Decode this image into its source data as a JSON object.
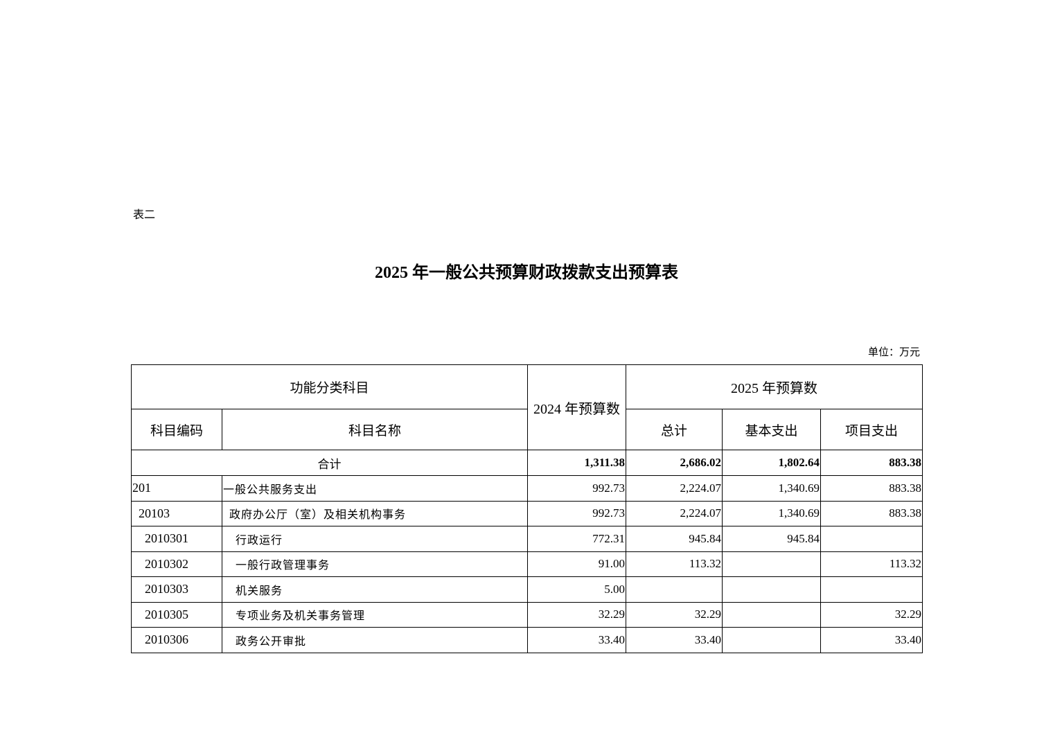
{
  "doc": {
    "label": "表二",
    "title": "2025 年一般公共预算财政拨款支出预算表",
    "unit": "单位：万元"
  },
  "header": {
    "group1": "功能分类科目",
    "prev_year": "2024 年预算数",
    "group2": "2025 年预算数",
    "code": "科目编码",
    "name": "科目名称",
    "total": "总计",
    "basic": "基本支出",
    "project": "项目支出"
  },
  "total_row": {
    "label": "合计",
    "prev": "1,311.38",
    "total": "2,686.02",
    "basic": "1,802.64",
    "project": "883.38"
  },
  "rows": [
    {
      "code": "201",
      "name": "一般公共服务支出",
      "prev": "992.73",
      "total": "2,224.07",
      "basic": "1,340.69",
      "project": "883.38",
      "level": 0
    },
    {
      "code": "20103",
      "name": "政府办公厅（室）及相关机构事务",
      "prev": "992.73",
      "total": "2,224.07",
      "basic": "1,340.69",
      "project": "883.38",
      "level": 1
    },
    {
      "code": "2010301",
      "name": "行政运行",
      "prev": "772.31",
      "total": "945.84",
      "basic": "945.84",
      "project": "",
      "level": 2
    },
    {
      "code": "2010302",
      "name": "一般行政管理事务",
      "prev": "91.00",
      "total": "113.32",
      "basic": "",
      "project": "113.32",
      "level": 2
    },
    {
      "code": "2010303",
      "name": "机关服务",
      "prev": "5.00",
      "total": "",
      "basic": "",
      "project": "",
      "level": 2
    },
    {
      "code": "2010305",
      "name": "专项业务及机关事务管理",
      "prev": "32.29",
      "total": "32.29",
      "basic": "",
      "project": "32.29",
      "level": 2
    },
    {
      "code": "2010306",
      "name": "政务公开审批",
      "prev": "33.40",
      "total": "33.40",
      "basic": "",
      "project": "33.40",
      "level": 2
    }
  ]
}
